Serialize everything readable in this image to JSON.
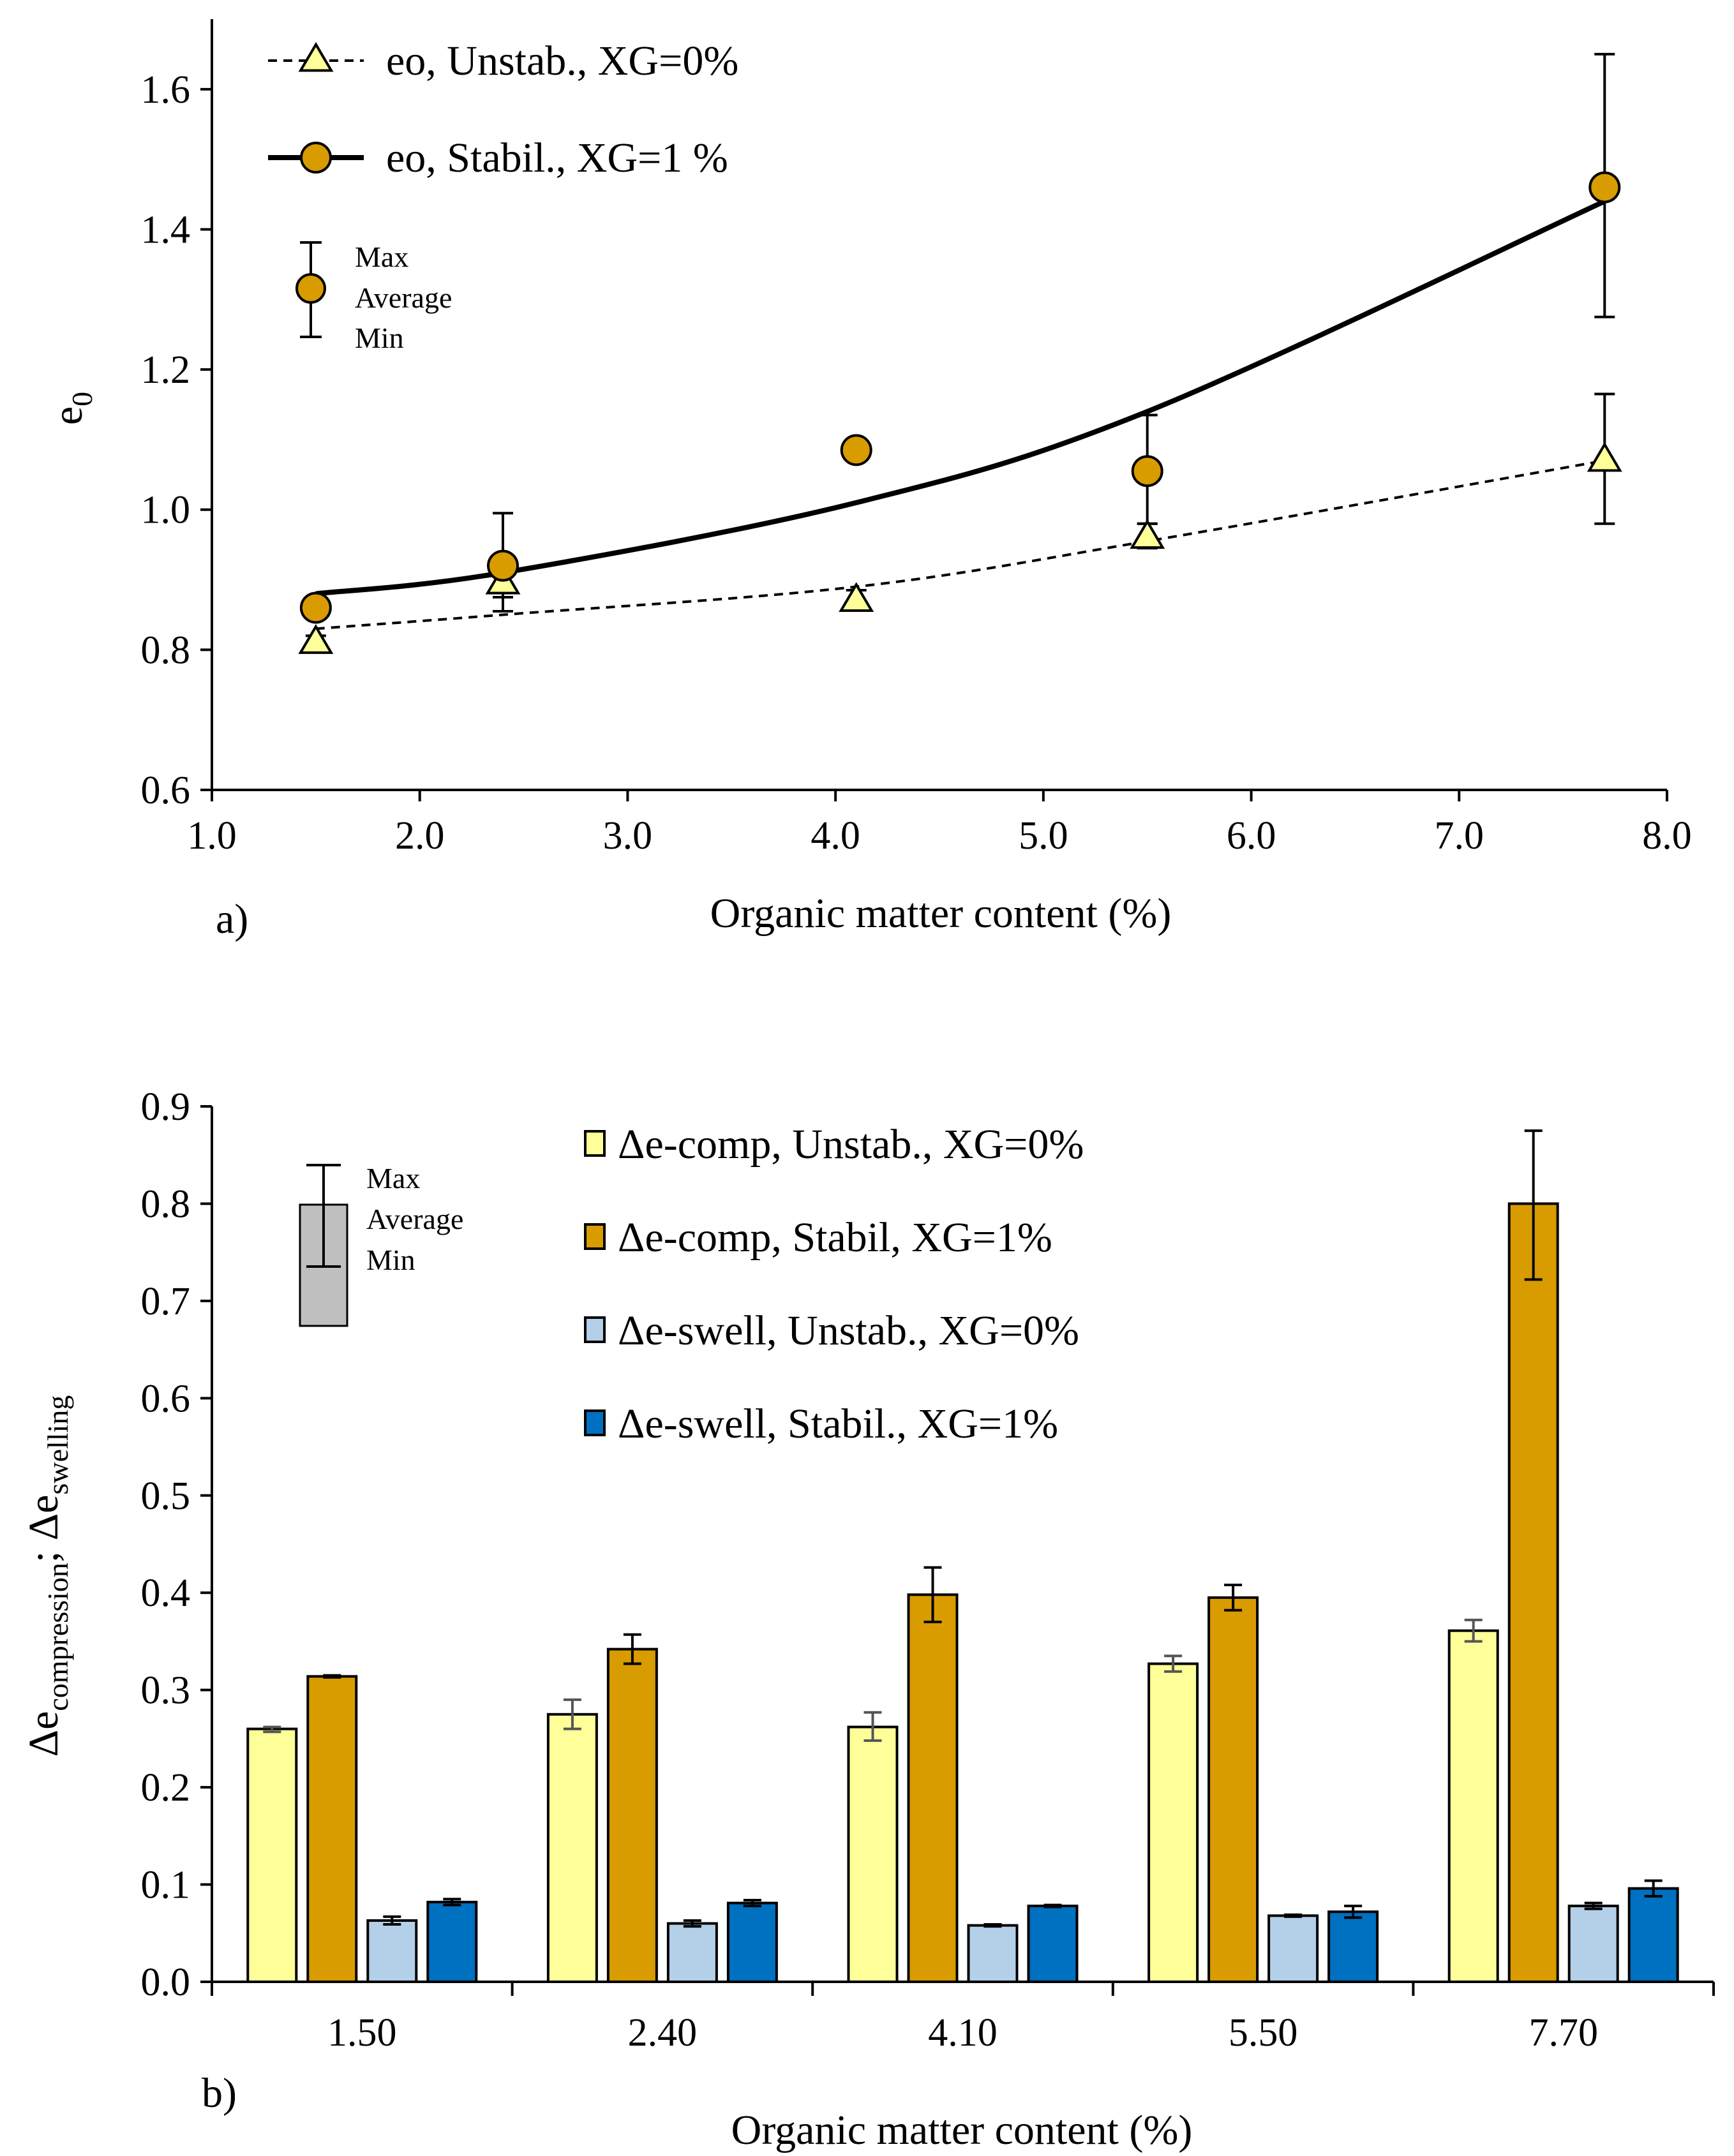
{
  "chart_data": [
    {
      "type": "scatter",
      "panel_label": "a)",
      "xlabel": "Organic matter content (%)",
      "ylabel": "e",
      "ylabel_sub": "0",
      "xlim": [
        1.0,
        8.0
      ],
      "ylim": [
        0.6,
        1.7
      ],
      "xticks": [
        1.0,
        2.0,
        3.0,
        4.0,
        5.0,
        6.0,
        7.0,
        8.0
      ],
      "xtick_labels": [
        "1.0",
        "2.0",
        "3.0",
        "4.0",
        "5.0",
        "6.0",
        "7.0",
        "8.0"
      ],
      "yticks": [
        0.6,
        0.8,
        1.0,
        1.2,
        1.4,
        1.6
      ],
      "ytick_labels": [
        "0.6",
        "0.8",
        "1.0",
        "1.2",
        "1.4",
        "1.6"
      ],
      "grid": false,
      "legend_position": "top-left",
      "series": [
        {
          "name": "eo, Unstab., XG=0%",
          "marker": "triangle",
          "line": "dashed",
          "color": "#ffff99",
          "x": [
            1.5,
            2.4,
            4.1,
            5.5,
            7.7
          ],
          "y": [
            0.81,
            0.895,
            0.87,
            0.96,
            1.07
          ],
          "y_max": [
            0.82,
            0.92,
            0.885,
            0.98,
            1.165
          ],
          "y_min": [
            0.8,
            0.855,
            0.86,
            0.945,
            0.98
          ],
          "trend": [
            0.83,
            0.85,
            0.89,
            0.955,
            1.07
          ]
        },
        {
          "name": "eo, Stabil., XG=1 %",
          "marker": "circle",
          "line": "solid",
          "color": "#d89b00",
          "x": [
            1.5,
            2.4,
            4.1,
            5.5,
            7.7
          ],
          "y": [
            0.86,
            0.92,
            1.085,
            1.055,
            1.46
          ],
          "y_max": [
            0.87,
            0.995,
            1.1,
            1.135,
            1.65
          ],
          "y_min": [
            0.85,
            0.875,
            1.07,
            0.98,
            1.275
          ],
          "trend": [
            0.88,
            0.91,
            1.01,
            1.14,
            1.44
          ]
        }
      ],
      "key": {
        "labels": [
          "Max",
          "Average",
          "Min"
        ]
      }
    },
    {
      "type": "bar",
      "panel_label": "b)",
      "xlabel": "Organic matter content (%)",
      "ylabel_parts": [
        "Δe",
        "compression",
        "; Δe",
        "swelling"
      ],
      "categories": [
        "1.50",
        "2.40",
        "4.10",
        "5.50",
        "7.70"
      ],
      "ylim": [
        0.0,
        0.9
      ],
      "yticks": [
        0.0,
        0.1,
        0.2,
        0.3,
        0.4,
        0.5,
        0.6,
        0.7,
        0.8,
        0.9
      ],
      "ytick_labels": [
        "0.0",
        "0.1",
        "0.2",
        "0.3",
        "0.4",
        "0.5",
        "0.6",
        "0.7",
        "0.8",
        "0.9"
      ],
      "grid": false,
      "legend_position": "top-right",
      "series": [
        {
          "name": "Δe-comp, Unstab., XG=0%",
          "color": "#ffff99",
          "values": [
            0.26,
            0.275,
            0.262,
            0.327,
            0.361
          ],
          "max": [
            0.262,
            0.29,
            0.277,
            0.335,
            0.372
          ],
          "min": [
            0.257,
            0.26,
            0.248,
            0.319,
            0.35
          ]
        },
        {
          "name": "Δe-comp, Stabil, XG=1%",
          "color": "#d89b00",
          "values": [
            0.314,
            0.342,
            0.398,
            0.395,
            0.8
          ],
          "max": [
            0.315,
            0.357,
            0.426,
            0.408,
            0.875
          ],
          "min": [
            0.313,
            0.327,
            0.37,
            0.382,
            0.722
          ]
        },
        {
          "name": "Δe-swell, Unstab., XG=0%",
          "color": "#b4cfe8",
          "values": [
            0.063,
            0.06,
            0.058,
            0.068,
            0.078
          ],
          "max": [
            0.067,
            0.063,
            0.059,
            0.069,
            0.081
          ],
          "min": [
            0.059,
            0.057,
            0.057,
            0.067,
            0.075
          ]
        },
        {
          "name": "Δe-swell, Stabil., XG=1%",
          "color": "#0070c0",
          "values": [
            0.082,
            0.081,
            0.078,
            0.072,
            0.096
          ],
          "max": [
            0.085,
            0.084,
            0.079,
            0.078,
            0.104
          ],
          "min": [
            0.079,
            0.078,
            0.077,
            0.066,
            0.088
          ]
        }
      ],
      "key": {
        "labels": [
          "Max",
          "Average",
          "Min"
        ]
      }
    }
  ]
}
